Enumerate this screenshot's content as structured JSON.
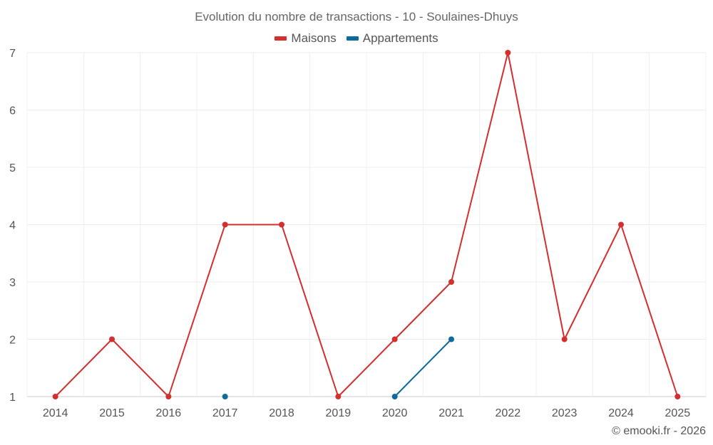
{
  "chart_data": {
    "type": "line",
    "title": "Evolution du nombre de transactions - 10 - Soulaines-Dhuys",
    "categories": [
      "2014",
      "2015",
      "2016",
      "2017",
      "2018",
      "2019",
      "2020",
      "2021",
      "2022",
      "2023",
      "2024",
      "2025"
    ],
    "yticks": [
      "1",
      "2",
      "3",
      "4",
      "5",
      "6",
      "7"
    ],
    "ylim": [
      1,
      7
    ],
    "grid": true,
    "legend_position": "top-center",
    "series": [
      {
        "name": "Maisons",
        "color": "#d32f2f",
        "values": [
          1,
          2,
          1,
          4,
          4,
          1,
          2,
          3,
          7,
          2,
          4,
          1
        ]
      },
      {
        "name": "Appartements",
        "color": "#0d6a9c",
        "values": [
          null,
          null,
          null,
          1,
          null,
          null,
          1,
          2,
          null,
          null,
          null,
          null
        ]
      }
    ]
  },
  "credit": "© emooki.fr - 2026"
}
